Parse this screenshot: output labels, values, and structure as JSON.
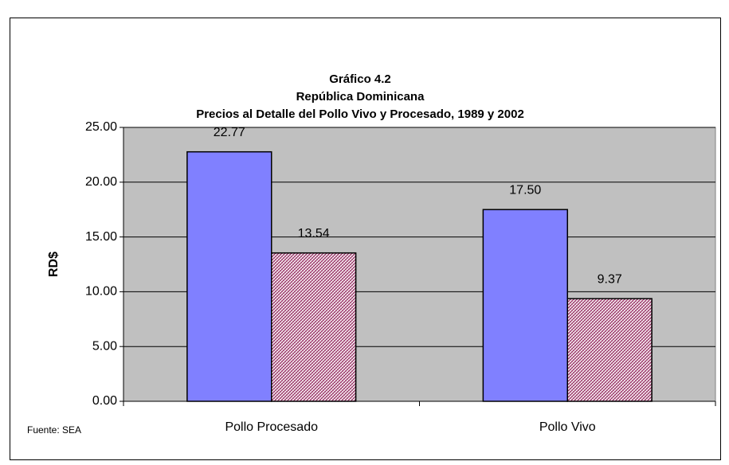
{
  "chart_data": {
    "type": "bar",
    "title": [
      "Gráfico 4.2",
      "República Dominicana",
      "Precios al Detalle del Pollo Vivo y Procesado, 1989 y 2002"
    ],
    "y_label": "RD$",
    "source": "Fuente: SEA",
    "categories": [
      "Pollo Procesado",
      "Pollo Vivo"
    ],
    "series": [
      {
        "color": "#8080ff",
        "values": [
          22.77,
          17.5
        ],
        "value_labels": [
          "22.77",
          "17.50"
        ]
      },
      {
        "color": "#993366",
        "pattern": "hatch",
        "values": [
          13.54,
          9.37
        ],
        "value_labels": [
          "13.54",
          "9.37"
        ]
      }
    ],
    "ylim": [
      0,
      25
    ],
    "yticks": [
      {
        "value": 0,
        "label": "0.00"
      },
      {
        "value": 5,
        "label": "5.00"
      },
      {
        "value": 10,
        "label": "10.00"
      },
      {
        "value": 15,
        "label": "15.00"
      },
      {
        "value": 20,
        "label": "20.00"
      },
      {
        "value": 25,
        "label": "25.00"
      }
    ],
    "grid": true,
    "plot_background": "#c0c0c0"
  }
}
